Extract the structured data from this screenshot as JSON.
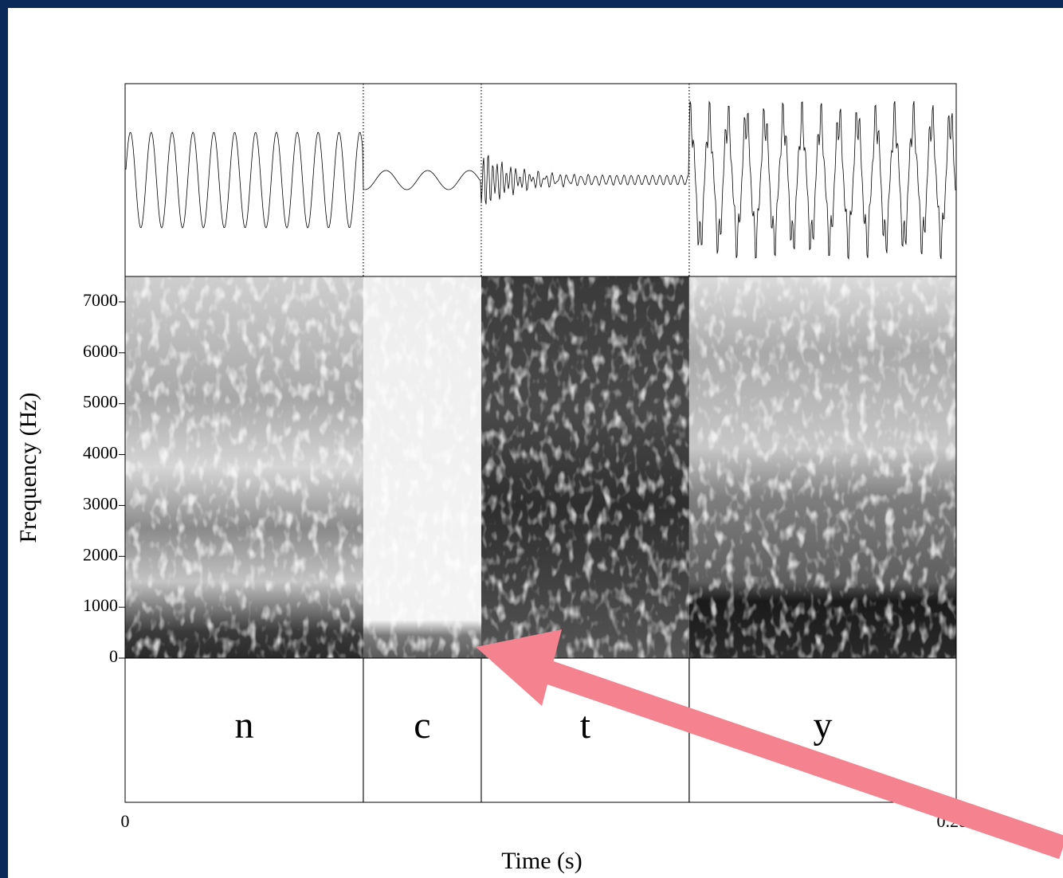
{
  "chart_data": {
    "type": "spectrogram",
    "x_label": "Time (s)",
    "y_label": "Frequency (Hz)",
    "xlim": [
      0,
      0.2882
    ],
    "xticks": [
      0,
      0.2882
    ],
    "ylim": [
      0,
      7500
    ],
    "yticks": [
      0,
      1000,
      2000,
      3000,
      4000,
      5000,
      6000,
      7000
    ],
    "intervals": [
      {
        "label": "n",
        "start": 0,
        "end": 0.0826
      },
      {
        "label": "c",
        "start": 0.0826,
        "end": 0.1235
      },
      {
        "label": "t",
        "start": 0.1235,
        "end": 0.1956
      },
      {
        "label": "y",
        "start": 0.1956,
        "end": 0.2882
      }
    ]
  }
}
